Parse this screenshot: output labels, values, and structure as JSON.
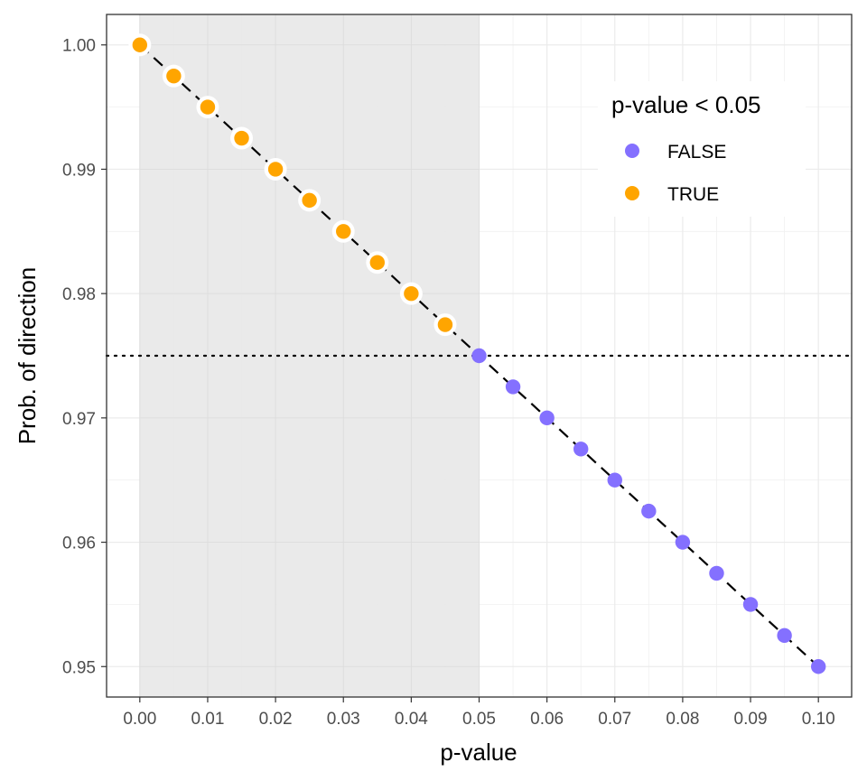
{
  "chart_data": {
    "type": "scatter",
    "xlabel": "p-value",
    "ylabel": "Prob. of direction",
    "xlim": [
      -0.0049,
      0.1049
    ],
    "ylim": [
      0.94755,
      1.00245
    ],
    "xticks": [
      0.0,
      0.01,
      0.02,
      0.03,
      0.04,
      0.05,
      0.06,
      0.07,
      0.08,
      0.09,
      0.1
    ],
    "xtick_labels": [
      "0.00",
      "0.01",
      "0.02",
      "0.03",
      "0.04",
      "0.05",
      "0.06",
      "0.07",
      "0.08",
      "0.09",
      "0.10"
    ],
    "yticks": [
      0.95,
      0.96,
      0.97,
      0.98,
      0.99,
      1.0
    ],
    "ytick_labels": [
      "0.95",
      "0.96",
      "0.97",
      "0.98",
      "0.99",
      "1.00"
    ],
    "grid": true,
    "shaded_region": {
      "x": [
        0.0,
        0.05
      ],
      "color": "#e8e8e8"
    },
    "reference_line": {
      "y": 0.975,
      "style": "dotted"
    },
    "trend_line": {
      "style": "dashed",
      "from": [
        0.0,
        1.0
      ],
      "to": [
        0.1,
        0.95
      ]
    },
    "legend": {
      "title": "p-value < 0.05",
      "placement": "top-right",
      "entries": [
        {
          "label": "FALSE",
          "color": "#8470ff"
        },
        {
          "label": "TRUE",
          "color": "#ffa500"
        }
      ]
    },
    "series": [
      {
        "name": "TRUE",
        "color": "#ffa500",
        "x": [
          0.0,
          0.005,
          0.01,
          0.015,
          0.02,
          0.025,
          0.03,
          0.035,
          0.04,
          0.045
        ],
        "y": [
          1.0,
          0.9975,
          0.995,
          0.9925,
          0.99,
          0.9875,
          0.985,
          0.9825,
          0.98,
          0.9775
        ]
      },
      {
        "name": "FALSE",
        "color": "#8470ff",
        "x": [
          0.05,
          0.055,
          0.06,
          0.065,
          0.07,
          0.075,
          0.08,
          0.085,
          0.09,
          0.095,
          0.1
        ],
        "y": [
          0.975,
          0.9725,
          0.97,
          0.9675,
          0.965,
          0.9625,
          0.96,
          0.9575,
          0.955,
          0.9525,
          0.95
        ]
      }
    ]
  }
}
